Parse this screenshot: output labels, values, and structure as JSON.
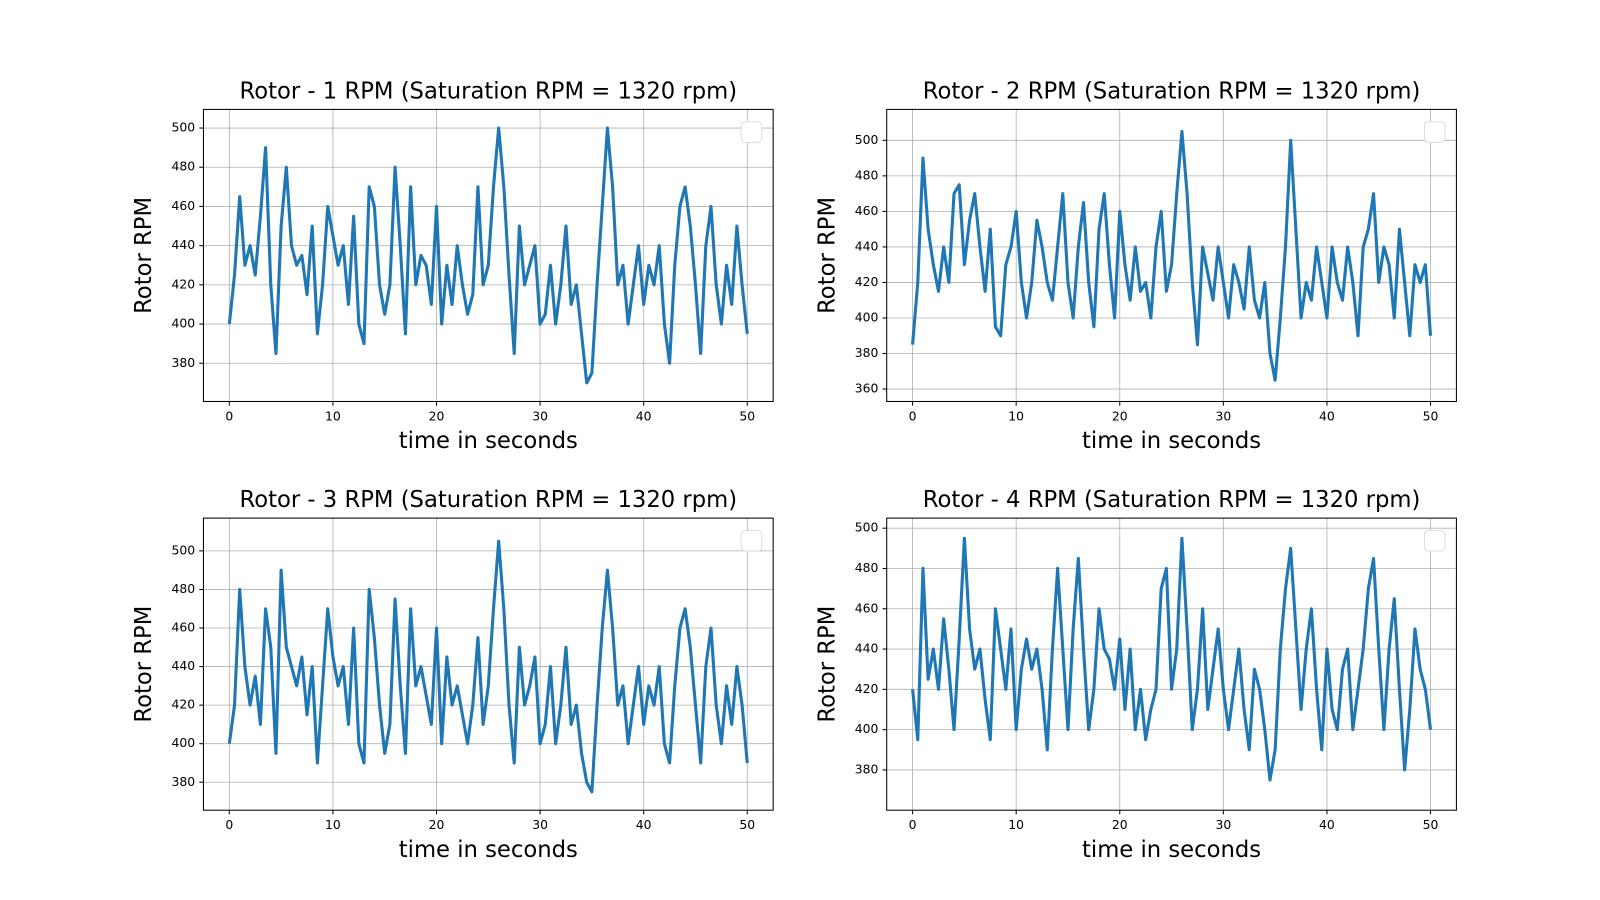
{
  "chart_data": [
    {
      "type": "line",
      "title": "Rotor - 1 RPM (Saturation RPM = 1320 rpm)",
      "xlabel": "time in seconds",
      "ylabel": "Rotor RPM",
      "color": "#1f77b4",
      "grid": true,
      "legend": "upper right",
      "xlim": [
        -2.5,
        52.5
      ],
      "xticks": [
        0,
        10,
        20,
        30,
        40,
        50
      ],
      "ylim": [
        360.5,
        509.5
      ],
      "yticks": [
        380,
        400,
        420,
        440,
        460,
        480,
        500
      ],
      "x": [
        0,
        0.5,
        1,
        1.5,
        2,
        2.5,
        3,
        3.5,
        4,
        4.5,
        5,
        5.5,
        6,
        6.5,
        7,
        7.5,
        8,
        8.5,
        9,
        9.5,
        10,
        10.5,
        11,
        11.5,
        12,
        12.5,
        13,
        13.5,
        14,
        14.5,
        15,
        15.5,
        16,
        16.5,
        17,
        17.5,
        18,
        18.5,
        19,
        19.5,
        20,
        20.5,
        21,
        21.5,
        22,
        22.5,
        23,
        23.5,
        24,
        24.5,
        25,
        25.5,
        26,
        26.5,
        27,
        27.5,
        28,
        28.5,
        29,
        29.5,
        30,
        30.5,
        31,
        31.5,
        32,
        32.5,
        33,
        33.5,
        34,
        34.5,
        35,
        35.5,
        36,
        36.5,
        37,
        37.5,
        38,
        38.5,
        39,
        39.5,
        40,
        40.5,
        41,
        41.5,
        42,
        42.5,
        43,
        43.5,
        44,
        44.5,
        45,
        45.5,
        46,
        46.5,
        47,
        47.5,
        48,
        48.5,
        49,
        49.5,
        50
      ],
      "values": [
        400,
        425,
        465,
        430,
        440,
        425,
        455,
        490,
        420,
        385,
        450,
        480,
        440,
        430,
        435,
        415,
        450,
        395,
        420,
        460,
        445,
        430,
        440,
        410,
        455,
        400,
        390,
        470,
        460,
        420,
        405,
        420,
        480,
        440,
        395,
        470,
        420,
        435,
        430,
        410,
        460,
        400,
        430,
        410,
        440,
        420,
        405,
        415,
        470,
        420,
        430,
        470,
        500,
        470,
        425,
        385,
        450,
        420,
        430,
        440,
        400,
        405,
        430,
        400,
        420,
        450,
        410,
        420,
        395,
        370,
        375,
        420,
        460,
        500,
        470,
        420,
        430,
        400,
        420,
        440,
        410,
        430,
        420,
        440,
        400,
        380,
        430,
        460,
        470,
        450,
        420,
        385,
        440,
        460,
        420,
        400,
        430,
        410,
        450,
        420,
        395
      ]
    },
    {
      "type": "line",
      "title": "Rotor - 2 RPM (Saturation RPM = 1320 rpm)",
      "xlabel": "time in seconds",
      "ylabel": "Rotor RPM",
      "color": "#1f77b4",
      "grid": true,
      "legend": "upper right",
      "xlim": [
        -2.5,
        52.5
      ],
      "xticks": [
        0,
        10,
        20,
        30,
        40,
        50
      ],
      "ylim": [
        353,
        517.4
      ],
      "yticks": [
        360,
        380,
        400,
        420,
        440,
        460,
        480,
        500
      ],
      "x": [
        0,
        0.5,
        1,
        1.5,
        2,
        2.5,
        3,
        3.5,
        4,
        4.5,
        5,
        5.5,
        6,
        6.5,
        7,
        7.5,
        8,
        8.5,
        9,
        9.5,
        10,
        10.5,
        11,
        11.5,
        12,
        12.5,
        13,
        13.5,
        14,
        14.5,
        15,
        15.5,
        16,
        16.5,
        17,
        17.5,
        18,
        18.5,
        19,
        19.5,
        20,
        20.5,
        21,
        21.5,
        22,
        22.5,
        23,
        23.5,
        24,
        24.5,
        25,
        25.5,
        26,
        26.5,
        27,
        27.5,
        28,
        28.5,
        29,
        29.5,
        30,
        30.5,
        31,
        31.5,
        32,
        32.5,
        33,
        33.5,
        34,
        34.5,
        35,
        35.5,
        36,
        36.5,
        37,
        37.5,
        38,
        38.5,
        39,
        39.5,
        40,
        40.5,
        41,
        41.5,
        42,
        42.5,
        43,
        43.5,
        44,
        44.5,
        45,
        45.5,
        46,
        46.5,
        47,
        47.5,
        48,
        48.5,
        49,
        49.5,
        50
      ],
      "values": [
        385,
        420,
        490,
        450,
        430,
        415,
        440,
        420,
        470,
        475,
        430,
        455,
        470,
        440,
        415,
        450,
        395,
        390,
        430,
        440,
        460,
        420,
        400,
        420,
        455,
        440,
        420,
        410,
        440,
        470,
        420,
        400,
        440,
        465,
        420,
        395,
        450,
        470,
        430,
        400,
        460,
        430,
        410,
        440,
        415,
        420,
        400,
        440,
        460,
        415,
        430,
        470,
        505,
        470,
        420,
        385,
        440,
        425,
        410,
        440,
        420,
        400,
        430,
        420,
        405,
        440,
        410,
        400,
        420,
        380,
        365,
        400,
        440,
        500,
        450,
        400,
        420,
        410,
        440,
        420,
        400,
        440,
        420,
        410,
        440,
        420,
        390,
        440,
        450,
        470,
        420,
        440,
        430,
        400,
        450,
        420,
        390,
        430,
        420,
        430,
        390
      ]
    },
    {
      "type": "line",
      "title": "Rotor - 3 RPM (Saturation RPM = 1320 rpm)",
      "xlabel": "time in seconds",
      "ylabel": "Rotor RPM",
      "color": "#1f77b4",
      "grid": true,
      "legend": "upper right",
      "xlim": [
        -2.5,
        52.5
      ],
      "xticks": [
        0,
        10,
        20,
        30,
        40,
        50
      ],
      "ylim": [
        365.5,
        517
      ],
      "yticks": [
        380,
        400,
        420,
        440,
        460,
        480,
        500
      ],
      "x": [
        0,
        0.5,
        1,
        1.5,
        2,
        2.5,
        3,
        3.5,
        4,
        4.5,
        5,
        5.5,
        6,
        6.5,
        7,
        7.5,
        8,
        8.5,
        9,
        9.5,
        10,
        10.5,
        11,
        11.5,
        12,
        12.5,
        13,
        13.5,
        14,
        14.5,
        15,
        15.5,
        16,
        16.5,
        17,
        17.5,
        18,
        18.5,
        19,
        19.5,
        20,
        20.5,
        21,
        21.5,
        22,
        22.5,
        23,
        23.5,
        24,
        24.5,
        25,
        25.5,
        26,
        26.5,
        27,
        27.5,
        28,
        28.5,
        29,
        29.5,
        30,
        30.5,
        31,
        31.5,
        32,
        32.5,
        33,
        33.5,
        34,
        34.5,
        35,
        35.5,
        36,
        36.5,
        37,
        37.5,
        38,
        38.5,
        39,
        39.5,
        40,
        40.5,
        41,
        41.5,
        42,
        42.5,
        43,
        43.5,
        44,
        44.5,
        45,
        45.5,
        46,
        46.5,
        47,
        47.5,
        48,
        48.5,
        49,
        49.5,
        50
      ],
      "values": [
        400,
        420,
        480,
        440,
        420,
        435,
        410,
        470,
        450,
        395,
        490,
        450,
        440,
        430,
        445,
        415,
        440,
        390,
        430,
        470,
        445,
        430,
        440,
        410,
        460,
        400,
        390,
        480,
        455,
        420,
        395,
        410,
        475,
        430,
        395,
        470,
        430,
        440,
        425,
        410,
        460,
        400,
        445,
        420,
        430,
        415,
        400,
        420,
        455,
        410,
        430,
        470,
        505,
        470,
        420,
        390,
        450,
        420,
        430,
        445,
        400,
        410,
        440,
        400,
        420,
        450,
        410,
        420,
        395,
        380,
        375,
        420,
        460,
        490,
        460,
        420,
        430,
        400,
        420,
        440,
        410,
        430,
        420,
        440,
        400,
        390,
        430,
        460,
        470,
        450,
        420,
        390,
        440,
        460,
        420,
        400,
        430,
        410,
        440,
        420,
        390
      ]
    },
    {
      "type": "line",
      "title": "Rotor - 4 RPM (Saturation RPM = 1320 rpm)",
      "xlabel": "time in seconds",
      "ylabel": "Rotor RPM",
      "color": "#1f77b4",
      "grid": true,
      "legend": "upper right",
      "xlim": [
        -2.5,
        52.5
      ],
      "xticks": [
        0,
        10,
        20,
        30,
        40,
        50
      ],
      "ylim": [
        360,
        505
      ],
      "yticks": [
        380,
        400,
        420,
        440,
        460,
        480,
        500
      ],
      "x": [
        0,
        0.5,
        1,
        1.5,
        2,
        2.5,
        3,
        3.5,
        4,
        4.5,
        5,
        5.5,
        6,
        6.5,
        7,
        7.5,
        8,
        8.5,
        9,
        9.5,
        10,
        10.5,
        11,
        11.5,
        12,
        12.5,
        13,
        13.5,
        14,
        14.5,
        15,
        15.5,
        16,
        16.5,
        17,
        17.5,
        18,
        18.5,
        19,
        19.5,
        20,
        20.5,
        21,
        21.5,
        22,
        22.5,
        23,
        23.5,
        24,
        24.5,
        25,
        25.5,
        26,
        26.5,
        27,
        27.5,
        28,
        28.5,
        29,
        29.5,
        30,
        30.5,
        31,
        31.5,
        32,
        32.5,
        33,
        33.5,
        34,
        34.5,
        35,
        35.5,
        36,
        36.5,
        37,
        37.5,
        38,
        38.5,
        39,
        39.5,
        40,
        40.5,
        41,
        41.5,
        42,
        42.5,
        43,
        43.5,
        44,
        44.5,
        45,
        45.5,
        46,
        46.5,
        47,
        47.5,
        48,
        48.5,
        49,
        49.5,
        50
      ],
      "values": [
        420,
        395,
        480,
        425,
        440,
        420,
        455,
        430,
        400,
        445,
        495,
        450,
        430,
        440,
        415,
        395,
        460,
        440,
        420,
        450,
        400,
        430,
        445,
        430,
        440,
        420,
        390,
        440,
        480,
        440,
        400,
        450,
        485,
        440,
        400,
        420,
        460,
        440,
        435,
        420,
        445,
        410,
        440,
        400,
        420,
        395,
        410,
        420,
        470,
        480,
        420,
        440,
        495,
        450,
        400,
        420,
        460,
        410,
        430,
        450,
        420,
        400,
        420,
        440,
        410,
        390,
        430,
        420,
        400,
        375,
        390,
        440,
        470,
        490,
        450,
        410,
        440,
        460,
        420,
        390,
        440,
        410,
        400,
        430,
        440,
        400,
        420,
        440,
        470,
        485,
        440,
        400,
        440,
        465,
        420,
        380,
        410,
        450,
        430,
        420,
        400
      ]
    }
  ]
}
